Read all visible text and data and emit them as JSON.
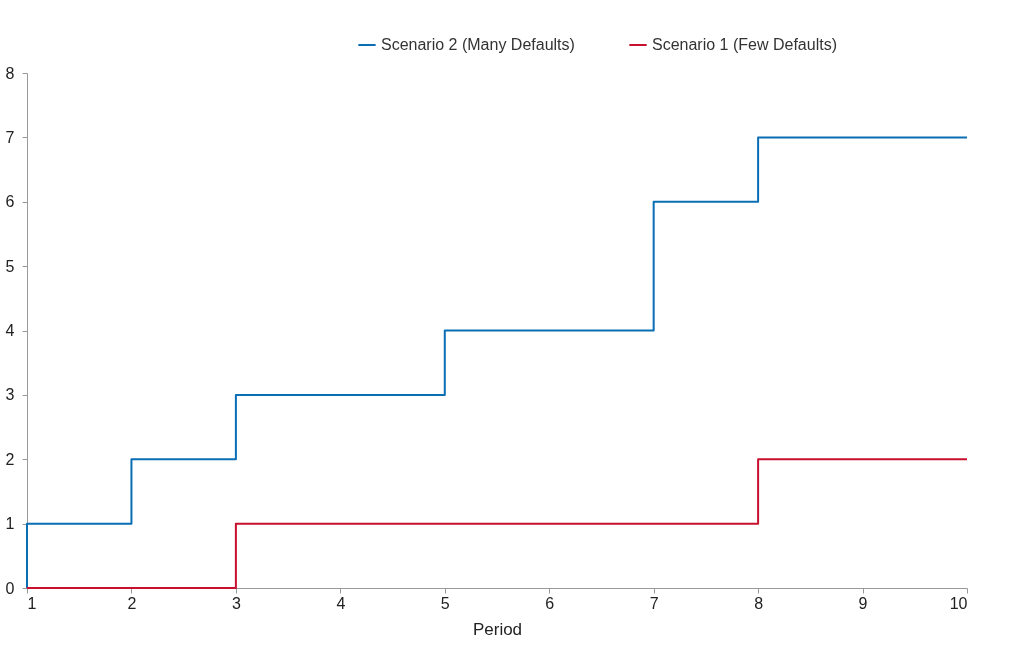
{
  "chart_data": {
    "type": "step",
    "xlabel": "Period",
    "xlim": [
      1,
      10
    ],
    "xticks": [
      1,
      2,
      3,
      4,
      5,
      6,
      7,
      8,
      9,
      10
    ],
    "ylim": [
      0,
      8
    ],
    "yticks": [
      0,
      1,
      2,
      3,
      4,
      5,
      6,
      7,
      8
    ],
    "grid": false,
    "legend": "top right",
    "series": [
      {
        "name": "Scenario 2 (Many Defaults)",
        "color": "#0a6eb4",
        "x": [
          1,
          1,
          2,
          3,
          4,
          5,
          6,
          7,
          8,
          9,
          10
        ],
        "values": [
          0,
          1,
          2,
          3,
          3,
          4,
          4,
          6,
          7,
          7,
          7
        ]
      },
      {
        "name": "Scenario 1 (Few Defaults)",
        "color": "#c8102e",
        "x": [
          1,
          2,
          3,
          4,
          5,
          6,
          7,
          8,
          9,
          10
        ],
        "values": [
          0,
          0,
          1,
          1,
          1,
          1,
          1,
          2,
          2,
          2
        ]
      }
    ]
  }
}
